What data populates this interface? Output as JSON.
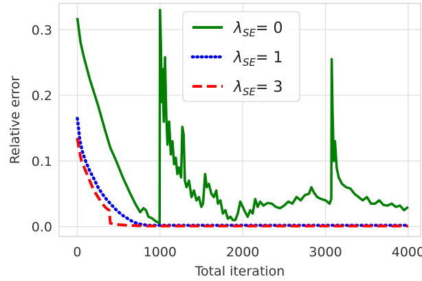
{
  "chart_data": {
    "type": "line",
    "title": "",
    "xlabel": "Total iteration",
    "ylabel": "Relative error",
    "xlim": [
      -220,
      4150
    ],
    "ylim": [
      -0.015,
      0.34
    ],
    "xticks": [
      0,
      1000,
      2000,
      3000,
      4000
    ],
    "yticks": [
      0.0,
      0.1,
      0.2,
      0.3
    ],
    "xtick_labels": [
      "0",
      "1000",
      "2000",
      "3000",
      "4000"
    ],
    "ytick_labels": [
      "0.0",
      "0.1",
      "0.2",
      "0.3"
    ],
    "grid": true,
    "legend_position": "upper-center",
    "legend": {
      "prefix": "λ",
      "subscript": "SE",
      "entries": [
        "= 0",
        "= 1",
        "= 3"
      ]
    },
    "series": [
      {
        "color": "#008000",
        "style": "solid",
        "points": [
          [
            0,
            0.318
          ],
          [
            40,
            0.28
          ],
          [
            80,
            0.258
          ],
          [
            150,
            0.225
          ],
          [
            250,
            0.185
          ],
          [
            340,
            0.145
          ],
          [
            400,
            0.12
          ],
          [
            470,
            0.1
          ],
          [
            550,
            0.075
          ],
          [
            630,
            0.053
          ],
          [
            700,
            0.035
          ],
          [
            760,
            0.022
          ],
          [
            800,
            0.028
          ],
          [
            830,
            0.025
          ],
          [
            860,
            0.015
          ],
          [
            900,
            0.013
          ],
          [
            950,
            0.008
          ],
          [
            985,
            0.006
          ],
          [
            995,
            0.005
          ],
          [
            1000,
            0.33
          ],
          [
            1010,
            0.28
          ],
          [
            1020,
            0.19
          ],
          [
            1030,
            0.24
          ],
          [
            1045,
            0.16
          ],
          [
            1060,
            0.258
          ],
          [
            1075,
            0.17
          ],
          [
            1090,
            0.125
          ],
          [
            1110,
            0.16
          ],
          [
            1130,
            0.11
          ],
          [
            1150,
            0.13
          ],
          [
            1170,
            0.095
          ],
          [
            1190,
            0.105
          ],
          [
            1210,
            0.08
          ],
          [
            1230,
            0.09
          ],
          [
            1255,
            0.075
          ],
          [
            1270,
            0.152
          ],
          [
            1285,
            0.14
          ],
          [
            1300,
            0.07
          ],
          [
            1320,
            0.06
          ],
          [
            1350,
            0.07
          ],
          [
            1380,
            0.045
          ],
          [
            1410,
            0.055
          ],
          [
            1440,
            0.04
          ],
          [
            1470,
            0.045
          ],
          [
            1500,
            0.03
          ],
          [
            1520,
            0.035
          ],
          [
            1545,
            0.08
          ],
          [
            1565,
            0.06
          ],
          [
            1590,
            0.065
          ],
          [
            1620,
            0.05
          ],
          [
            1650,
            0.045
          ],
          [
            1680,
            0.055
          ],
          [
            1700,
            0.035
          ],
          [
            1730,
            0.04
          ],
          [
            1760,
            0.02
          ],
          [
            1790,
            0.025
          ],
          [
            1820,
            0.012
          ],
          [
            1850,
            0.015
          ],
          [
            1880,
            0.01
          ],
          [
            1910,
            0.01
          ],
          [
            1940,
            0.02
          ],
          [
            1970,
            0.038
          ],
          [
            2000,
            0.03
          ],
          [
            2030,
            0.022
          ],
          [
            2060,
            0.015
          ],
          [
            2090,
            0.025
          ],
          [
            2120,
            0.02
          ],
          [
            2150,
            0.042
          ],
          [
            2180,
            0.03
          ],
          [
            2210,
            0.038
          ],
          [
            2250,
            0.032
          ],
          [
            2300,
            0.036
          ],
          [
            2350,
            0.035
          ],
          [
            2400,
            0.03
          ],
          [
            2450,
            0.028
          ],
          [
            2500,
            0.032
          ],
          [
            2550,
            0.038
          ],
          [
            2600,
            0.035
          ],
          [
            2650,
            0.045
          ],
          [
            2700,
            0.04
          ],
          [
            2750,
            0.048
          ],
          [
            2800,
            0.05
          ],
          [
            2830,
            0.06
          ],
          [
            2860,
            0.052
          ],
          [
            2900,
            0.045
          ],
          [
            2950,
            0.042
          ],
          [
            3000,
            0.04
          ],
          [
            3050,
            0.035
          ],
          [
            3070,
            0.042
          ],
          [
            3075,
            0.255
          ],
          [
            3085,
            0.18
          ],
          [
            3100,
            0.1
          ],
          [
            3115,
            0.13
          ],
          [
            3135,
            0.09
          ],
          [
            3160,
            0.075
          ],
          [
            3200,
            0.065
          ],
          [
            3250,
            0.06
          ],
          [
            3300,
            0.058
          ],
          [
            3350,
            0.05
          ],
          [
            3400,
            0.045
          ],
          [
            3450,
            0.04
          ],
          [
            3500,
            0.045
          ],
          [
            3550,
            0.035
          ],
          [
            3600,
            0.035
          ],
          [
            3650,
            0.04
          ],
          [
            3700,
            0.033
          ],
          [
            3750,
            0.032
          ],
          [
            3800,
            0.035
          ],
          [
            3850,
            0.03
          ],
          [
            3900,
            0.032
          ],
          [
            3950,
            0.025
          ],
          [
            4000,
            0.03
          ]
        ]
      },
      {
        "color": "#0000ff",
        "style": "dotted",
        "points": [
          [
            0,
            0.165
          ],
          [
            15,
            0.15
          ],
          [
            30,
            0.132
          ],
          [
            60,
            0.115
          ],
          [
            100,
            0.1
          ],
          [
            150,
            0.085
          ],
          [
            200,
            0.073
          ],
          [
            250,
            0.06
          ],
          [
            300,
            0.05
          ],
          [
            350,
            0.042
          ],
          [
            400,
            0.035
          ],
          [
            450,
            0.028
          ],
          [
            500,
            0.022
          ],
          [
            550,
            0.017
          ],
          [
            600,
            0.013
          ],
          [
            650,
            0.009
          ],
          [
            700,
            0.006
          ],
          [
            750,
            0.004
          ],
          [
            800,
            0.003
          ],
          [
            850,
            0.002
          ],
          [
            900,
            0.002
          ],
          [
            1000,
            0.002
          ],
          [
            1500,
            0.002
          ],
          [
            2000,
            0.002
          ],
          [
            2500,
            0.002
          ],
          [
            3000,
            0.002
          ],
          [
            3500,
            0.002
          ],
          [
            4000,
            0.002
          ]
        ]
      },
      {
        "color": "#ff0000",
        "style": "dashed",
        "points": [
          [
            0,
            0.135
          ],
          [
            20,
            0.118
          ],
          [
            50,
            0.1
          ],
          [
            100,
            0.085
          ],
          [
            150,
            0.07
          ],
          [
            200,
            0.055
          ],
          [
            250,
            0.045
          ],
          [
            300,
            0.035
          ],
          [
            350,
            0.028
          ],
          [
            385,
            0.025
          ],
          [
            400,
            0.005
          ],
          [
            450,
            0.004
          ],
          [
            500,
            0.003
          ],
          [
            600,
            0.002
          ],
          [
            800,
            0.001
          ],
          [
            1000,
            0.001
          ],
          [
            2000,
            0.001
          ],
          [
            3000,
            0.001
          ],
          [
            4000,
            0.001
          ]
        ]
      }
    ]
  }
}
